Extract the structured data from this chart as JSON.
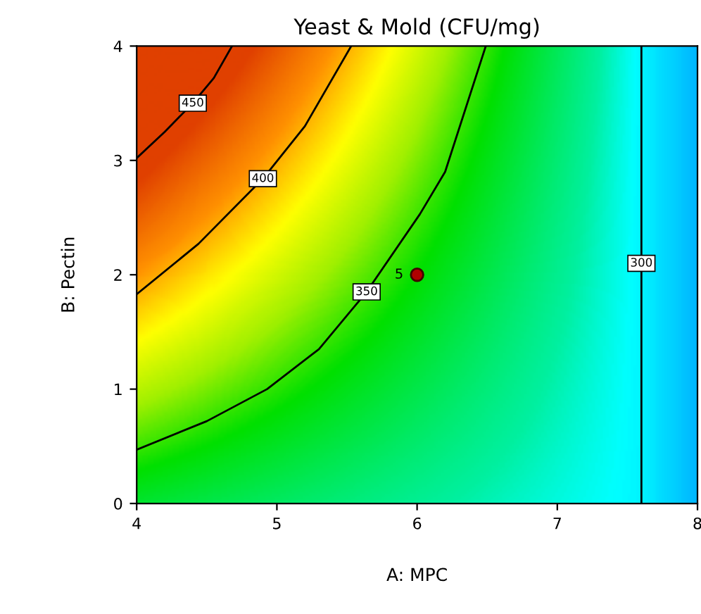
{
  "chart_data": {
    "type": "line",
    "title": "Yeast & Mold (CFU/mg)",
    "xlabel": "A: MPC",
    "ylabel": "B: Pectin",
    "xlim": [
      4,
      8
    ],
    "ylim": [
      0,
      4
    ],
    "xticks": [
      4,
      5,
      6,
      7,
      8
    ],
    "yticks": [
      0,
      1,
      2,
      3,
      4
    ],
    "grid": false,
    "legend": false,
    "marker": "none",
    "line_style": "solid",
    "series": [
      {
        "name": "450",
        "color": "#000000",
        "x": [
          4,
          4.2,
          4.4,
          4.55,
          4.68
        ],
        "values": [
          3.02,
          3.25,
          3.5,
          3.72,
          4
        ]
      },
      {
        "name": "400",
        "color": "#000000",
        "x": [
          4,
          4.44,
          4.9,
          5.2,
          5.53
        ],
        "values": [
          1.83,
          2.27,
          2.84,
          3.3,
          4
        ]
      },
      {
        "name": "350",
        "color": "#000000",
        "x": [
          4,
          4.5,
          4.93,
          5.3,
          5.64,
          6.02,
          6.2,
          6.49
        ],
        "values": [
          0.47,
          0.72,
          1.0,
          1.35,
          1.85,
          2.53,
          2.9,
          4
        ]
      },
      {
        "name": "300",
        "color": "#000000",
        "x": [
          7.6,
          7.6,
          7.6
        ],
        "values": [
          0,
          2.1,
          4
        ]
      },
      {
        "type": "scatter",
        "marker": "circle",
        "color": "#b00000",
        "x": [
          6
        ],
        "values": [
          2
        ]
      }
    ],
    "annotations": [
      {
        "text": "5",
        "x": 6,
        "y": 2
      }
    ]
  }
}
